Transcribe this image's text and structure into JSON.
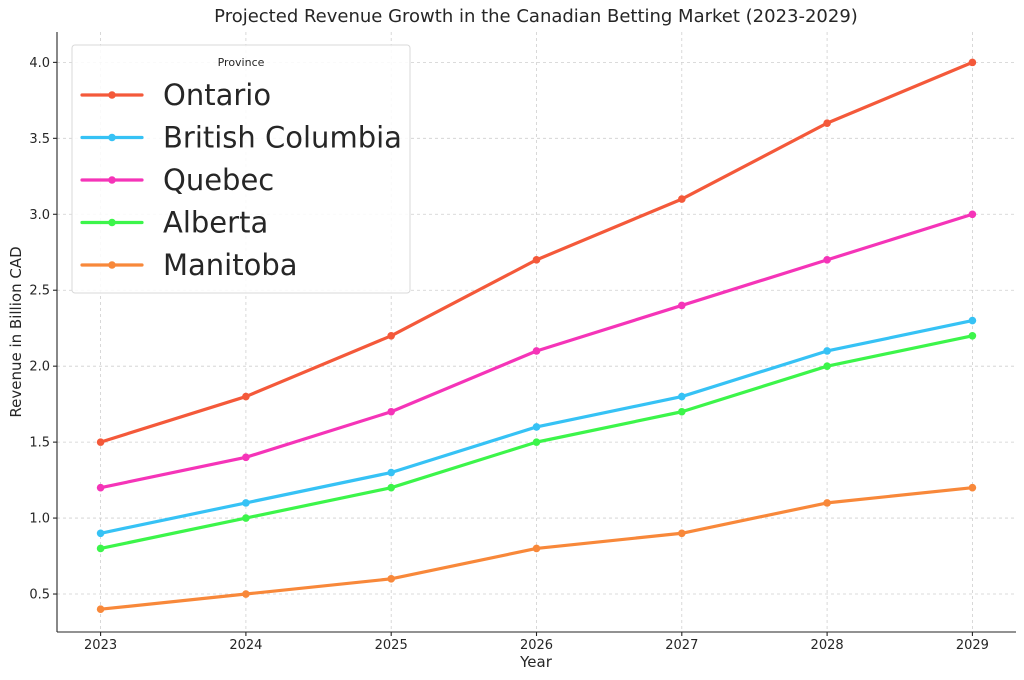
{
  "chart_data": {
    "type": "line",
    "title": "Projected Revenue Growth in the Canadian Betting Market (2023-2029)",
    "xlabel": "Year",
    "ylabel": "Revenue in Billion CAD",
    "x": [
      2023,
      2024,
      2025,
      2026,
      2027,
      2028,
      2029
    ],
    "x_tick_labels": [
      "2023",
      "2024",
      "2025",
      "2026",
      "2027",
      "2028",
      "2029"
    ],
    "y_ticks": [
      0.5,
      1.0,
      1.5,
      2.0,
      2.5,
      3.0,
      3.5,
      4.0
    ],
    "y_tick_labels": [
      "0.5",
      "1.0",
      "1.5",
      "2.0",
      "2.5",
      "3.0",
      "3.5",
      "4.0"
    ],
    "xlim": [
      2022.7,
      2029.3
    ],
    "ylim": [
      0.25,
      4.2
    ],
    "grid": true,
    "legend": {
      "title": "Province",
      "placement": "top-left"
    },
    "series": [
      {
        "name": "Ontario",
        "color": "#f4593a",
        "values": [
          1.5,
          1.8,
          2.2,
          2.7,
          3.1,
          3.6,
          4.0
        ]
      },
      {
        "name": "British Columbia",
        "color": "#36c2f5",
        "values": [
          0.9,
          1.1,
          1.3,
          1.6,
          1.8,
          2.1,
          2.3
        ]
      },
      {
        "name": "Quebec",
        "color": "#f534b8",
        "values": [
          1.2,
          1.4,
          1.7,
          2.1,
          2.4,
          2.7,
          3.0
        ]
      },
      {
        "name": "Alberta",
        "color": "#3cf54a",
        "values": [
          0.8,
          1.0,
          1.2,
          1.5,
          1.7,
          2.0,
          2.2
        ]
      },
      {
        "name": "Manitoba",
        "color": "#f8883a",
        "values": [
          0.4,
          0.5,
          0.6,
          0.8,
          0.9,
          1.1,
          1.2
        ]
      }
    ]
  }
}
